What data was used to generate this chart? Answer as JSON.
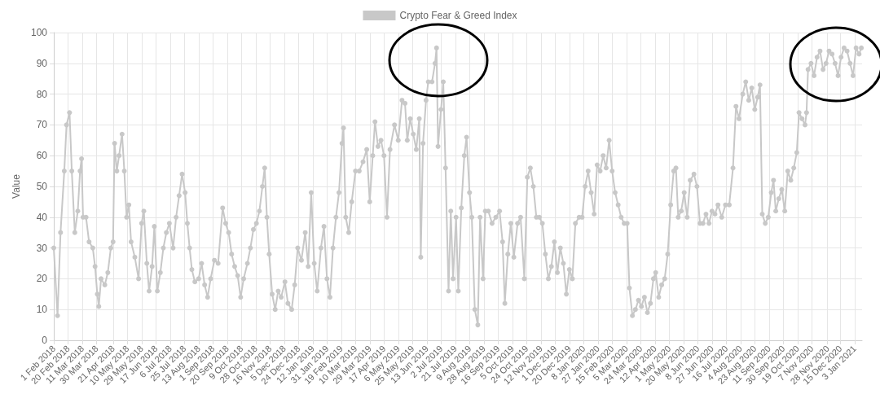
{
  "chart_data": {
    "type": "line",
    "ylabel": "Value",
    "legend": "top",
    "grid": true,
    "marker": "circle",
    "line_style": "solid",
    "xlim": [
      "2018-02-01",
      "2021-01-13"
    ],
    "ylim": [
      0,
      100
    ],
    "yticks": [
      0,
      10,
      20,
      30,
      40,
      50,
      60,
      70,
      80,
      90,
      100
    ],
    "xticks": [
      {
        "value": "2018-02-01",
        "label": "1 Feb 2018"
      },
      {
        "value": "2018-02-20",
        "label": "20 Feb 2018"
      },
      {
        "value": "2018-03-11",
        "label": "11 Mar 2018"
      },
      {
        "value": "2018-03-30",
        "label": "30 Mar 2018"
      },
      {
        "value": "2018-04-21",
        "label": "21 Apr 2018"
      },
      {
        "value": "2018-05-10",
        "label": "10 May 2018"
      },
      {
        "value": "2018-05-29",
        "label": "29 May 2018"
      },
      {
        "value": "2018-06-17",
        "label": "17 Jun 2018"
      },
      {
        "value": "2018-07-06",
        "label": "6 Jul 2018"
      },
      {
        "value": "2018-07-25",
        "label": "25 Jul 2018"
      },
      {
        "value": "2018-08-13",
        "label": "13 Aug 2018"
      },
      {
        "value": "2018-09-01",
        "label": "1 Sep 2018"
      },
      {
        "value": "2018-09-20",
        "label": "20 Sep 2018"
      },
      {
        "value": "2018-10-09",
        "label": "9 Oct 2018"
      },
      {
        "value": "2018-10-28",
        "label": "28 Oct 2018"
      },
      {
        "value": "2018-11-16",
        "label": "16 Nov 2018"
      },
      {
        "value": "2018-12-05",
        "label": "5 Dec 2018"
      },
      {
        "value": "2018-12-24",
        "label": "24 Dec 2018"
      },
      {
        "value": "2019-01-12",
        "label": "12 Jan 2019"
      },
      {
        "value": "2019-01-31",
        "label": "31 Jan 2019"
      },
      {
        "value": "2019-02-19",
        "label": "19 Feb 2019"
      },
      {
        "value": "2019-03-10",
        "label": "10 Mar 2019"
      },
      {
        "value": "2019-03-29",
        "label": "29 Mar 2019"
      },
      {
        "value": "2019-04-17",
        "label": "17 Apr 2019"
      },
      {
        "value": "2019-05-06",
        "label": "6 May 2019"
      },
      {
        "value": "2019-05-25",
        "label": "25 May 2019"
      },
      {
        "value": "2019-06-13",
        "label": "13 Jun 2019"
      },
      {
        "value": "2019-07-02",
        "label": "2 Jul 2019"
      },
      {
        "value": "2019-07-21",
        "label": "21 Jul 2019"
      },
      {
        "value": "2019-08-09",
        "label": "9 Aug 2019"
      },
      {
        "value": "2019-08-28",
        "label": "28 Aug 2019"
      },
      {
        "value": "2019-09-16",
        "label": "16 Sep 2019"
      },
      {
        "value": "2019-10-05",
        "label": "5 Oct 2019"
      },
      {
        "value": "2019-10-24",
        "label": "24 Oct 2019"
      },
      {
        "value": "2019-11-12",
        "label": "12 Nov 2019"
      },
      {
        "value": "2019-12-01",
        "label": "1 Dec 2019"
      },
      {
        "value": "2019-12-20",
        "label": "20 Dec 2019"
      },
      {
        "value": "2020-01-08",
        "label": "8 Jan 2020"
      },
      {
        "value": "2020-01-27",
        "label": "27 Jan 2020"
      },
      {
        "value": "2020-02-15",
        "label": "15 Feb 2020"
      },
      {
        "value": "2020-03-05",
        "label": "5 Mar 2020"
      },
      {
        "value": "2020-03-24",
        "label": "24 Mar 2020"
      },
      {
        "value": "2020-04-12",
        "label": "12 Apr 2020"
      },
      {
        "value": "2020-05-01",
        "label": "1 May 2020"
      },
      {
        "value": "2020-05-20",
        "label": "20 May 2020"
      },
      {
        "value": "2020-06-08",
        "label": "8 Jun 2020"
      },
      {
        "value": "2020-06-27",
        "label": "27 Jun 2020"
      },
      {
        "value": "2020-07-16",
        "label": "16 Jul 2020"
      },
      {
        "value": "2020-08-04",
        "label": "4 Aug 2020"
      },
      {
        "value": "2020-08-23",
        "label": "23 Aug 2020"
      },
      {
        "value": "2020-09-11",
        "label": "11 Sep 2020"
      },
      {
        "value": "2020-09-30",
        "label": "30 Sep 2020"
      },
      {
        "value": "2020-10-19",
        "label": "19 Oct 2020"
      },
      {
        "value": "2020-11-07",
        "label": "7 Nov 2020"
      },
      {
        "value": "2020-11-28",
        "label": "28 Nov 2020"
      },
      {
        "value": "2020-12-15",
        "label": "15 Dec 2020"
      },
      {
        "value": "2021-01-03",
        "label": "3 Jan 2021"
      }
    ],
    "x": [
      "2018-02-01",
      "2018-02-06",
      "2018-02-10",
      "2018-02-15",
      "2018-02-18",
      "2018-02-22",
      "2018-02-25",
      "2018-03-01",
      "2018-03-05",
      "2018-03-08",
      "2018-03-10",
      "2018-03-12",
      "2018-03-16",
      "2018-03-20",
      "2018-03-25",
      "2018-03-28",
      "2018-03-31",
      "2018-04-02",
      "2018-04-05",
      "2018-04-10",
      "2018-04-14",
      "2018-04-18",
      "2018-04-21",
      "2018-04-23",
      "2018-04-26",
      "2018-04-29",
      "2018-05-03",
      "2018-05-06",
      "2018-05-09",
      "2018-05-12",
      "2018-05-15",
      "2018-05-20",
      "2018-05-25",
      "2018-05-29",
      "2018-06-01",
      "2018-06-05",
      "2018-06-08",
      "2018-06-12",
      "2018-06-15",
      "2018-06-19",
      "2018-06-23",
      "2018-06-27",
      "2018-07-01",
      "2018-07-05",
      "2018-07-10",
      "2018-07-14",
      "2018-07-18",
      "2018-07-22",
      "2018-07-26",
      "2018-07-29",
      "2018-08-01",
      "2018-08-04",
      "2018-08-08",
      "2018-08-13",
      "2018-08-17",
      "2018-08-21",
      "2018-08-25",
      "2018-08-29",
      "2018-09-03",
      "2018-09-08",
      "2018-09-14",
      "2018-09-18",
      "2018-09-22",
      "2018-09-26",
      "2018-09-30",
      "2018-10-04",
      "2018-10-08",
      "2018-10-12",
      "2018-10-17",
      "2018-10-21",
      "2018-10-25",
      "2018-10-29",
      "2018-11-02",
      "2018-11-06",
      "2018-11-09",
      "2018-11-12",
      "2018-11-15",
      "2018-11-19",
      "2018-11-23",
      "2018-11-27",
      "2018-12-01",
      "2018-12-06",
      "2018-12-10",
      "2018-12-15",
      "2018-12-19",
      "2018-12-23",
      "2018-12-28",
      "2019-01-02",
      "2019-01-06",
      "2019-01-10",
      "2019-01-14",
      "2019-01-18",
      "2019-01-23",
      "2019-01-27",
      "2019-01-31",
      "2019-02-04",
      "2019-02-08",
      "2019-02-12",
      "2019-02-16",
      "2019-02-20",
      "2019-02-22",
      "2019-02-25",
      "2019-03-01",
      "2019-03-05",
      "2019-03-10",
      "2019-03-15",
      "2019-03-20",
      "2019-03-25",
      "2019-03-29",
      "2019-04-02",
      "2019-04-05",
      "2019-04-09",
      "2019-04-13",
      "2019-04-17",
      "2019-04-21",
      "2019-04-25",
      "2019-05-01",
      "2019-05-06",
      "2019-05-11",
      "2019-05-15",
      "2019-05-18",
      "2019-05-22",
      "2019-05-26",
      "2019-05-30",
      "2019-06-03",
      "2019-06-05",
      "2019-06-08",
      "2019-06-12",
      "2019-06-15",
      "2019-06-20",
      "2019-06-24",
      "2019-06-26",
      "2019-06-28",
      "2019-07-02",
      "2019-07-05",
      "2019-07-08",
      "2019-07-12",
      "2019-07-15",
      "2019-07-18",
      "2019-07-22",
      "2019-07-25",
      "2019-07-29",
      "2019-08-02",
      "2019-08-05",
      "2019-08-09",
      "2019-08-12",
      "2019-08-16",
      "2019-08-20",
      "2019-08-23",
      "2019-08-27",
      "2019-08-30",
      "2019-09-03",
      "2019-09-08",
      "2019-09-13",
      "2019-09-18",
      "2019-09-22",
      "2019-09-25",
      "2019-09-29",
      "2019-10-03",
      "2019-10-07",
      "2019-10-12",
      "2019-10-16",
      "2019-10-21",
      "2019-10-25",
      "2019-10-29",
      "2019-11-02",
      "2019-11-06",
      "2019-11-10",
      "2019-11-14",
      "2019-11-18",
      "2019-11-22",
      "2019-11-26",
      "2019-11-30",
      "2019-12-04",
      "2019-12-08",
      "2019-12-12",
      "2019-12-16",
      "2019-12-20",
      "2019-12-24",
      "2019-12-28",
      "2020-01-02",
      "2020-01-06",
      "2020-01-10",
      "2020-01-14",
      "2020-01-18",
      "2020-01-22",
      "2020-01-26",
      "2020-01-30",
      "2020-02-03",
      "2020-02-07",
      "2020-02-11",
      "2020-02-15",
      "2020-02-19",
      "2020-02-23",
      "2020-02-27",
      "2020-03-02",
      "2020-03-06",
      "2020-03-09",
      "2020-03-13",
      "2020-03-17",
      "2020-03-21",
      "2020-03-25",
      "2020-03-29",
      "2020-04-02",
      "2020-04-06",
      "2020-04-10",
      "2020-04-13",
      "2020-04-17",
      "2020-04-21",
      "2020-04-25",
      "2020-04-29",
      "2020-05-03",
      "2020-05-07",
      "2020-05-10",
      "2020-05-13",
      "2020-05-17",
      "2020-05-21",
      "2020-05-25",
      "2020-05-29",
      "2020-06-03",
      "2020-06-07",
      "2020-06-11",
      "2020-06-15",
      "2020-06-19",
      "2020-06-23",
      "2020-06-27",
      "2020-07-01",
      "2020-07-05",
      "2020-07-10",
      "2020-07-15",
      "2020-07-20",
      "2020-07-25",
      "2020-07-29",
      "2020-08-02",
      "2020-08-07",
      "2020-08-11",
      "2020-08-15",
      "2020-08-19",
      "2020-08-23",
      "2020-08-27",
      "2020-08-30",
      "2020-09-02",
      "2020-09-06",
      "2020-09-10",
      "2020-09-14",
      "2020-09-17",
      "2020-09-20",
      "2020-09-24",
      "2020-09-28",
      "2020-10-02",
      "2020-10-06",
      "2020-10-10",
      "2020-10-14",
      "2020-10-18",
      "2020-10-21",
      "2020-10-25",
      "2020-10-29",
      "2020-10-31",
      "2020-11-02",
      "2020-11-06",
      "2020-11-10",
      "2020-11-14",
      "2020-11-18",
      "2020-11-22",
      "2020-11-26",
      "2020-11-30",
      "2020-12-04",
      "2020-12-08",
      "2020-12-12",
      "2020-12-16",
      "2020-12-20",
      "2020-12-24",
      "2020-12-28",
      "2021-01-01",
      "2021-01-05",
      "2021-01-09",
      "2021-01-12"
    ],
    "series": [
      {
        "name": "Crypto Fear & Greed Index",
        "color": "#c8c8c8",
        "values": [
          30,
          8,
          35,
          55,
          70,
          74,
          55,
          35,
          42,
          55,
          59,
          40,
          40,
          32,
          30,
          24,
          15,
          11,
          20,
          18,
          22,
          30,
          32,
          64,
          55,
          60,
          67,
          55,
          40,
          44,
          32,
          27,
          20,
          38,
          42,
          25,
          16,
          24,
          37,
          16,
          22,
          30,
          35,
          38,
          30,
          40,
          47,
          54,
          48,
          38,
          30,
          23,
          19,
          20,
          25,
          18,
          14,
          20,
          26,
          25,
          43,
          38,
          35,
          28,
          24,
          21,
          14,
          20,
          25,
          30,
          36,
          38,
          42,
          50,
          56,
          40,
          28,
          15,
          10,
          16,
          14,
          19,
          12,
          10,
          18,
          30,
          26,
          35,
          24,
          48,
          25,
          16,
          30,
          37,
          20,
          14,
          30,
          40,
          48,
          64,
          69,
          40,
          35,
          45,
          55,
          55,
          58,
          62,
          45,
          60,
          71,
          63,
          65,
          60,
          40,
          62,
          70,
          65,
          78,
          77,
          65,
          72,
          67,
          62,
          72,
          27,
          64,
          78,
          84,
          84,
          90,
          95,
          63,
          75,
          84,
          56,
          16,
          42,
          20,
          40,
          16,
          43,
          60,
          66,
          48,
          40,
          10,
          5,
          40,
          20,
          42,
          42,
          38,
          40,
          42,
          32,
          12,
          28,
          38,
          27,
          38,
          40,
          20,
          53,
          56,
          50,
          40,
          40,
          38,
          28,
          20,
          24,
          32,
          22,
          30,
          25,
          15,
          23,
          20,
          38,
          40,
          40,
          50,
          55,
          48,
          41,
          57,
          55,
          60,
          56,
          65,
          55,
          48,
          44,
          40,
          38,
          38,
          17,
          8,
          10,
          13,
          11,
          14,
          9,
          12,
          20,
          22,
          14,
          18,
          20,
          28,
          44,
          55,
          56,
          40,
          42,
          48,
          40,
          52,
          54,
          50,
          38,
          38,
          41,
          38,
          42,
          41,
          44,
          40,
          44,
          44,
          56,
          76,
          72,
          80,
          84,
          78,
          82,
          75,
          79,
          83,
          41,
          38,
          40,
          48,
          52,
          42,
          46,
          49,
          42,
          55,
          52,
          56,
          61,
          74,
          72,
          70,
          74,
          88,
          90,
          86,
          92,
          94,
          88,
          90,
          94,
          93,
          90,
          86,
          92,
          95,
          94,
          90,
          86,
          95,
          93,
          95
        ]
      }
    ]
  }
}
